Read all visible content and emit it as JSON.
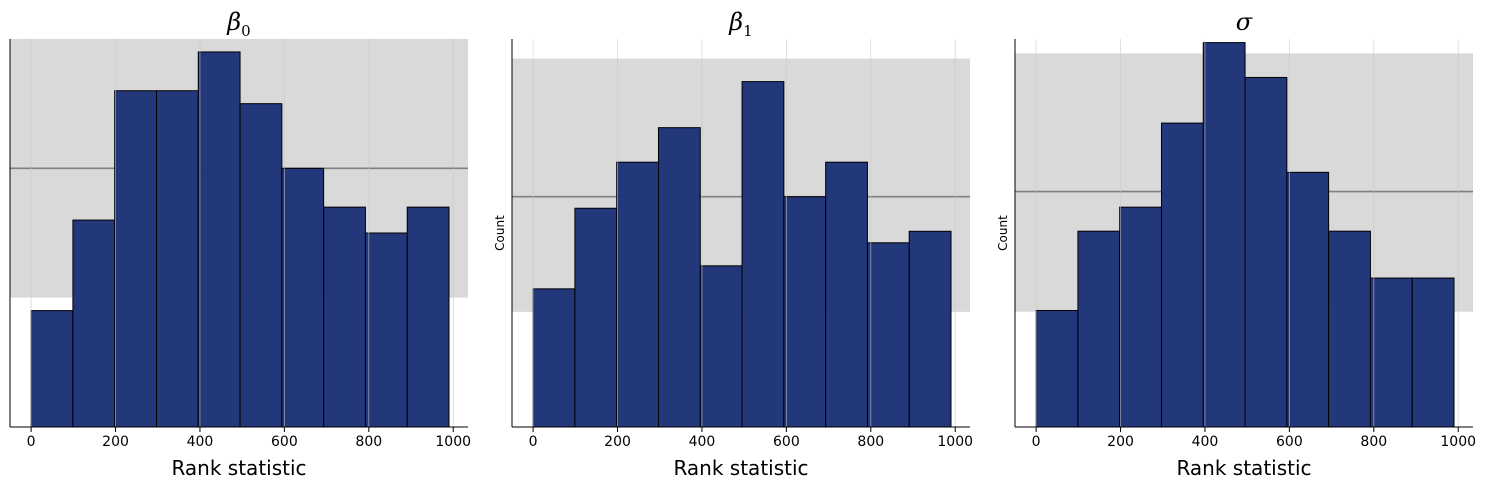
{
  "chart_data": [
    {
      "type": "bar",
      "title_symbol": "β",
      "title_subscript": "0",
      "xlabel": "Rank statistic",
      "ylabel": "",
      "xlim": [
        -50,
        1035
      ],
      "ylim": [
        0,
        30
      ],
      "xticks": [
        "0",
        "200",
        "400",
        "600",
        "800",
        "1000"
      ],
      "bin_edges": [
        0,
        99,
        198,
        297,
        396,
        495,
        594,
        693,
        792,
        891,
        990
      ],
      "values": [
        9,
        16,
        26,
        26,
        29,
        25,
        20,
        17,
        15,
        17
      ],
      "band": [
        10,
        32
      ],
      "expected": 20,
      "grid": "vertical"
    },
    {
      "type": "bar",
      "title_symbol": "β",
      "title_subscript": "1",
      "xlabel": "Rank statistic",
      "ylabel": "Count",
      "xlim": [
        -50,
        1035
      ],
      "ylim": [
        0,
        33.7
      ],
      "xticks": [
        "0",
        "200",
        "400",
        "600",
        "800",
        "1000"
      ],
      "bin_edges": [
        0,
        99,
        198,
        297,
        396,
        495,
        594,
        693,
        792,
        891,
        990
      ],
      "values": [
        12,
        19,
        23,
        26,
        14,
        30,
        20,
        23,
        16,
        17
      ],
      "band": [
        10,
        32
      ],
      "expected": 20,
      "grid": "vertical"
    },
    {
      "type": "bar",
      "title_symbol": "σ",
      "title_subscript": "",
      "xlabel": "Rank statistic",
      "ylabel": "Count",
      "xlim": [
        -50,
        1035
      ],
      "ylim": [
        0,
        32.3
      ],
      "xticks": [
        "0",
        "200",
        "400",
        "600",
        "800",
        "1000"
      ],
      "bin_edges": [
        0,
        99,
        198,
        297,
        396,
        495,
        594,
        693,
        792,
        891,
        990
      ],
      "values": [
        9.7,
        16.3,
        18.3,
        25.3,
        32,
        29.1,
        21.2,
        16.3,
        12.4,
        12.4
      ],
      "band": [
        9.6,
        31.1
      ],
      "expected": 19.6,
      "grid": "vertical"
    }
  ],
  "colors": {
    "bar_fill": "#1f3378",
    "bar_edge": "#000000",
    "band": "#d9d9d9",
    "expected_line": "#808080",
    "grid": "#c8c8c8"
  }
}
